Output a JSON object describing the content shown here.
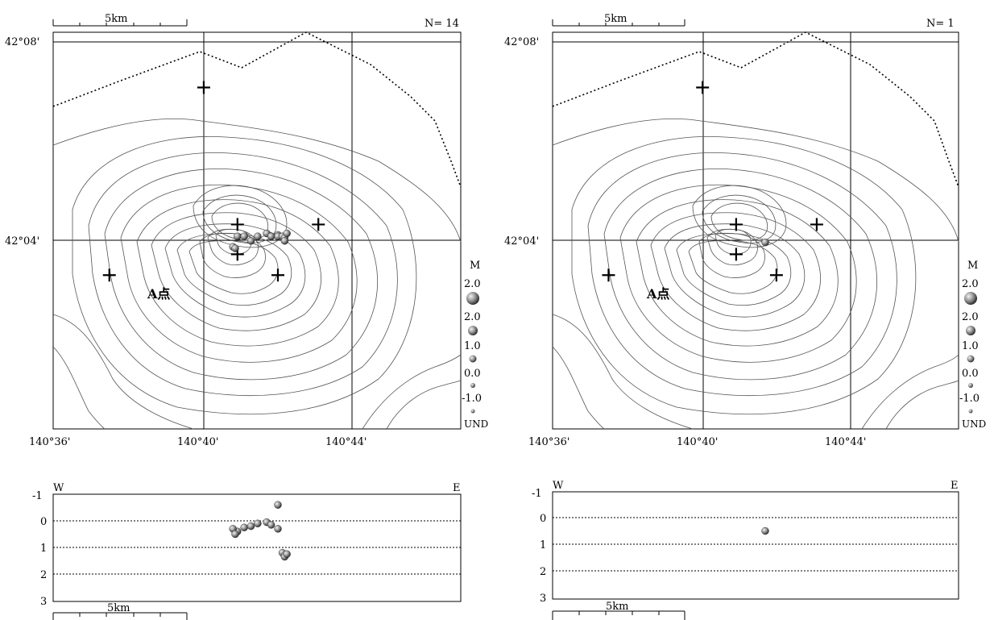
{
  "maps": [
    {
      "count_label": "N= 14",
      "scale_label": "5km",
      "lat_labels": [
        "42°08'",
        "42°04'"
      ],
      "lon_labels": [
        "140°36'",
        "140°40'",
        "140°44'"
      ],
      "point_label": "A点",
      "quakes": [
        {
          "lon": 140.682,
          "lat": 42.068,
          "depth": 0.4
        },
        {
          "lon": 140.685,
          "lat": 42.068,
          "depth": 0.25
        },
        {
          "lon": 140.688,
          "lat": 42.0665,
          "depth": 0.2
        },
        {
          "lon": 140.691,
          "lat": 42.068,
          "depth": 0.1
        },
        {
          "lon": 140.695,
          "lat": 42.069,
          "depth": 0.05
        },
        {
          "lon": 140.697,
          "lat": 42.068,
          "depth": 0.15
        },
        {
          "lon": 140.7,
          "lat": 42.0685,
          "depth": 0.3
        },
        {
          "lon": 140.7,
          "lat": 42.068,
          "depth": -0.6
        },
        {
          "lon": 140.702,
          "lat": 42.068,
          "depth": 1.2
        },
        {
          "lon": 140.703,
          "lat": 42.0675,
          "depth": 1.3
        },
        {
          "lon": 140.703,
          "lat": 42.0665,
          "depth": 1.35
        },
        {
          "lon": 140.704,
          "lat": 42.069,
          "depth": 1.25
        },
        {
          "lon": 140.68,
          "lat": 42.0645,
          "depth": 0.3
        },
        {
          "lon": 140.681,
          "lat": 42.064,
          "depth": 0.5
        }
      ],
      "section": {
        "left_label": "W",
        "right_label": "E",
        "depth_labels": [
          "-1",
          "0",
          "1",
          "2",
          "3"
        ],
        "bottom_scale_label": "5km"
      }
    },
    {
      "count_label": "N= 1",
      "scale_label": "5km",
      "lat_labels": [
        "42°08'",
        "42°04'"
      ],
      "lon_labels": [
        "140°36'",
        "140°40'",
        "140°44'"
      ],
      "point_label": "A点",
      "quakes": [
        {
          "lon": 140.695,
          "lat": 42.066,
          "depth": 0.5
        }
      ],
      "section": {
        "left_label": "W",
        "right_label": "E",
        "depth_labels": [
          "-1",
          "0",
          "1",
          "2",
          "3"
        ],
        "bottom_scale_label": "5km"
      }
    }
  ],
  "legend": {
    "title": "M",
    "entries": [
      "2.0",
      "2.0",
      "1.0",
      "0.0",
      "-1.0",
      "UND"
    ]
  },
  "stations": [
    {
      "lon": 140.667,
      "lat": 42.118
    },
    {
      "lon": 140.682,
      "lat": 42.072
    },
    {
      "lon": 140.718,
      "lat": 42.072
    },
    {
      "lon": 140.682,
      "lat": 42.062
    },
    {
      "lon": 140.7,
      "lat": 42.055
    },
    {
      "lon": 140.625,
      "lat": 42.055
    }
  ],
  "colors": {
    "contour": "#555555",
    "quake_dark": "#333333",
    "quake_light": "#d8d8d8"
  }
}
